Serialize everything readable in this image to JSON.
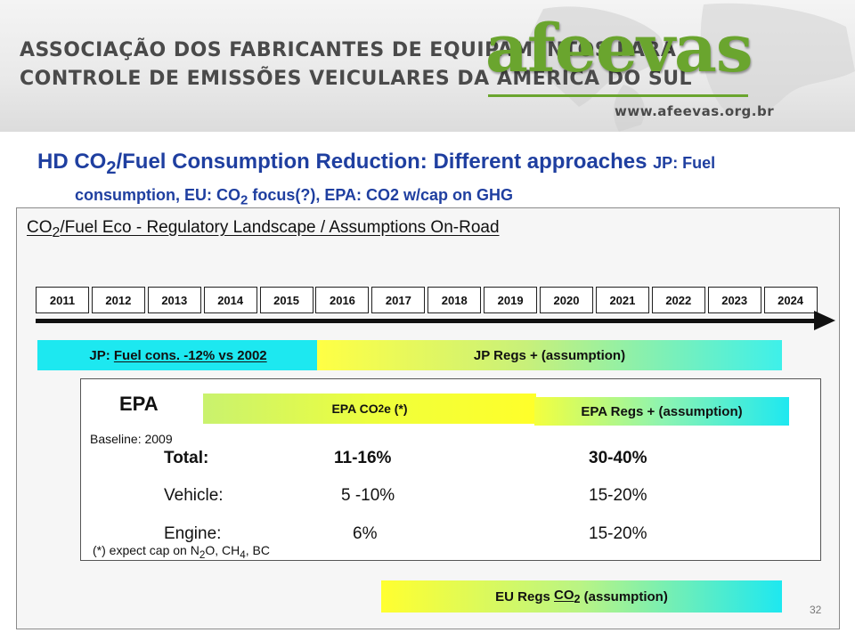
{
  "banner": {
    "org_line1": "ASSOCIAÇÃO DOS FABRICANTES DE EQUIPAMENTOS PARA",
    "org_line2": "CONTROLE DE EMISSÕES VEICULARES DA AMÉRICA DO SUL",
    "logo": "afeevas",
    "url": "www.afeevas.org.br"
  },
  "title": {
    "line1_pre": "HD CO",
    "line1_sub": "2",
    "line1_post": "/Fuel Consumption Reduction: Different approaches ",
    "line1_tail": "JP: Fuel",
    "line2_pre": "consumption, EU: CO",
    "line2_sub": "2",
    "line2_post": " focus(?), EPA: CO2 w/cap on GHG"
  },
  "landscape": {
    "pre": "CO",
    "sub": "2",
    "post": "/Fuel Eco - Regulatory Landscape / Assumptions On-Road"
  },
  "years": [
    "2011",
    "2012",
    "2013",
    "2014",
    "2015",
    "2016",
    "2017",
    "2018",
    "2019",
    "2020",
    "2021",
    "2022",
    "2023",
    "2024"
  ],
  "jp": {
    "prefix": "JP: ",
    "underlined": "Fuel cons. -12% vs 2002",
    "regs": "JP Regs + (assumption)"
  },
  "epa": {
    "label": "EPA",
    "baseline": "Baseline: 2009",
    "co2e_pre": "EPA CO",
    "co2e_sub": "2",
    "co2e_post": "e  (*)",
    "regs": "EPA Regs + (assumption)",
    "rows": [
      {
        "label": "Total:",
        "near": "11-16%",
        "far": "30-40%"
      },
      {
        "label": "Vehicle:",
        "near": "5 -10%",
        "far": "15-20%"
      },
      {
        "label": "Engine:",
        "near": "6%",
        "far": "15-20%"
      }
    ],
    "footnote_pre": "(*) expect cap on N",
    "footnote_sub1": "2",
    "footnote_mid": "O, CH",
    "footnote_sub2": "4",
    "footnote_post": ", BC"
  },
  "eu": {
    "pre": "EU Regs ",
    "u_pre": "CO",
    "u_sub": "2",
    "post": " (assumption)"
  },
  "page_number": "32"
}
